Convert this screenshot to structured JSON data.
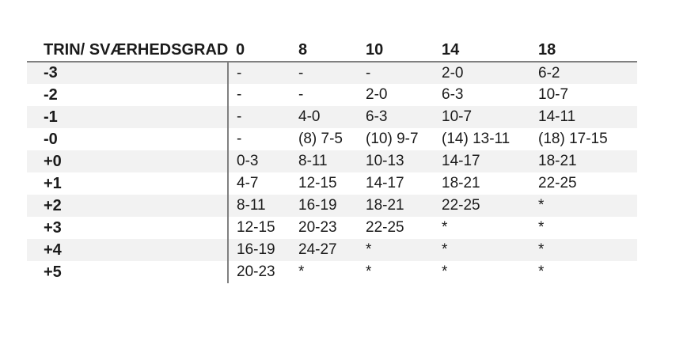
{
  "table": {
    "header": {
      "label": "TRIN/ SVÆRHEDSGRAD",
      "cols": [
        "0",
        "8",
        "10",
        "14",
        "18"
      ]
    },
    "rows": [
      {
        "label": "-3",
        "cells": [
          "-",
          "-",
          "-",
          "2-0",
          "6-2"
        ]
      },
      {
        "label": "-2",
        "cells": [
          "-",
          "-",
          "2-0",
          "6-3",
          "10-7"
        ]
      },
      {
        "label": "-1",
        "cells": [
          "-",
          "4-0",
          "6-3",
          "10-7",
          "14-11"
        ]
      },
      {
        "label": "-0",
        "cells": [
          "-",
          "(8) 7-5",
          "(10) 9-7",
          "(14) 13-11",
          "(18) 17-15"
        ]
      },
      {
        "label": "+0",
        "cells": [
          "0-3",
          "8-11",
          "10-13",
          "14-17",
          "18-21"
        ]
      },
      {
        "label": "+1",
        "cells": [
          "4-7",
          "12-15",
          "14-17",
          "18-21",
          "22-25"
        ]
      },
      {
        "label": "+2",
        "cells": [
          "8-11",
          "16-19",
          "18-21",
          "22-25",
          "*"
        ]
      },
      {
        "label": "+3",
        "cells": [
          "12-15",
          "20-23",
          "22-25",
          "*",
          "*"
        ]
      },
      {
        "label": "+4",
        "cells": [
          "16-19",
          "24-27",
          "*",
          "*",
          "*"
        ]
      },
      {
        "label": "+5",
        "cells": [
          "20-23",
          "*",
          "*",
          "*",
          "*"
        ]
      }
    ],
    "colors": {
      "stripe": "#f2f2f2",
      "border": "#808080",
      "text": "#1b1b1b",
      "background": "#ffffff"
    }
  }
}
